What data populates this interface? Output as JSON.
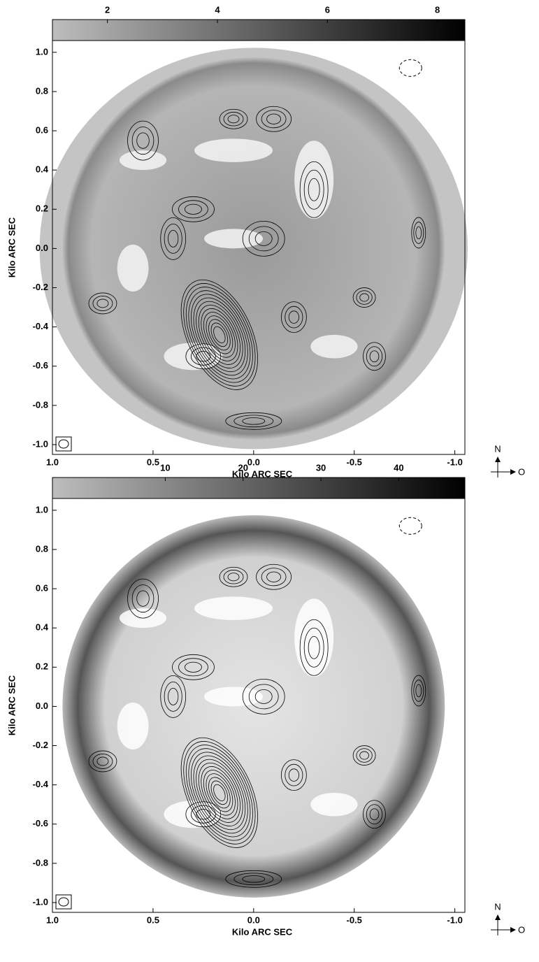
{
  "chart_data": [
    {
      "type": "image",
      "xlabel": "Kilo ARC SEC",
      "ylabel": "Kilo ARC SEC",
      "xlim": [
        1.0,
        -1.05
      ],
      "ylim": [
        -1.05,
        1.06
      ],
      "xticks": [
        {
          "value": 1,
          "label": "1.0"
        },
        {
          "value": 0.5,
          "label": "0.5"
        },
        {
          "value": 0,
          "label": "0.0"
        },
        {
          "value": -0.5,
          "label": "-0.5"
        },
        {
          "value": -1,
          "label": "-1.0"
        }
      ],
      "yticks": [
        {
          "value": 1,
          "label": "1.0"
        },
        0.8,
        0.6,
        0.4,
        0.2,
        {
          "value": 0,
          "label": "0.0"
        },
        -0.2,
        -0.4,
        -0.6,
        -0.8,
        {
          "value": -1,
          "label": "-1.0"
        }
      ],
      "clim": [
        1,
        8.5
      ],
      "cticks": [
        2,
        4,
        6,
        8
      ],
      "annotations": [
        "N",
        "O"
      ]
    },
    {
      "type": "image",
      "xlabel": "Kilo ARC SEC",
      "ylabel": "Kilo ARC SEC",
      "xlim": [
        1.0,
        -1.05
      ],
      "ylim": [
        -1.05,
        1.06
      ],
      "xticks": [
        {
          "value": 1,
          "label": "1.0"
        },
        {
          "value": 0.5,
          "label": "0.5"
        },
        {
          "value": 0,
          "label": "0.0"
        },
        {
          "value": -0.5,
          "label": "-0.5"
        },
        {
          "value": -1,
          "label": "-1.0"
        }
      ],
      "yticks": [
        {
          "value": 1,
          "label": "1.0"
        },
        0.8,
        0.6,
        0.4,
        0.2,
        {
          "value": 0,
          "label": "0.0"
        },
        -0.2,
        -0.4,
        -0.6,
        -0.8,
        {
          "value": -1,
          "label": "-1.0"
        }
      ],
      "clim": [
        -4.5,
        48.5
      ],
      "cticks": [
        10,
        20,
        30,
        40
      ],
      "annotations": [
        "N",
        "O"
      ]
    }
  ]
}
